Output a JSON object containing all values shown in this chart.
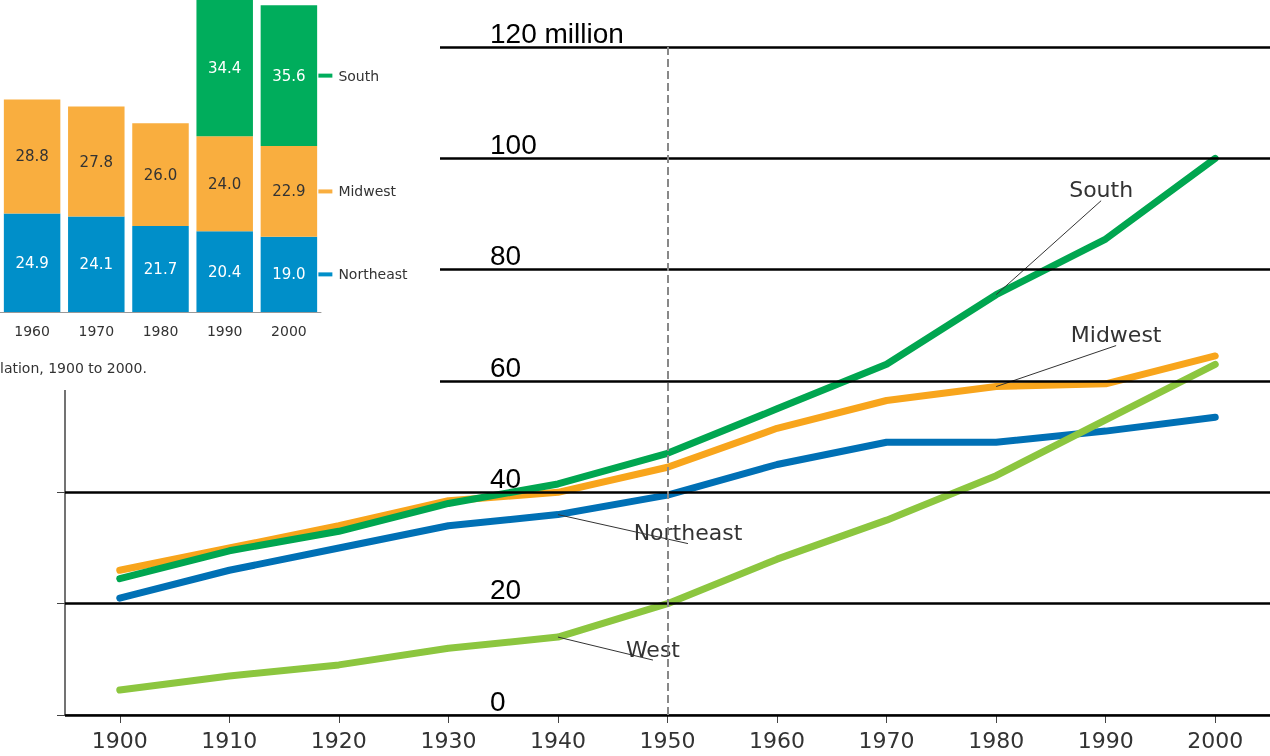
{
  "chart_data": [
    {
      "type": "bar",
      "stacked": true,
      "legend": "right",
      "categories": [
        "1960",
        "1970",
        "1980",
        "1990",
        "2000"
      ],
      "series": [
        {
          "name": "Northeast",
          "color": "#008fc9",
          "values": [
            24.9,
            24.1,
            21.7,
            20.4,
            19.0
          ],
          "value_labels": [
            "24.9",
            "24.1",
            "21.7",
            "20.4",
            "19.0"
          ]
        },
        {
          "name": "Midwest",
          "color": "#f9ae3f",
          "values": [
            28.8,
            27.8,
            26.0,
            24.0,
            22.9
          ],
          "value_labels": [
            "28.8",
            "27.8",
            "26.0",
            "24.0",
            "22.9"
          ]
        },
        {
          "name": "South",
          "color": "#00ad5c",
          "values": [
            null,
            null,
            null,
            34.4,
            35.6
          ],
          "value_labels": [
            null,
            null,
            null,
            "34.4",
            "35.6"
          ]
        }
      ],
      "annotations": [
        "lation, 1900 to 2000."
      ]
    },
    {
      "type": "line",
      "legend": false,
      "grid": "y",
      "marker": "none",
      "line_style": "solid",
      "x": [
        1900,
        1910,
        1920,
        1930,
        1940,
        1950,
        1960,
        1970,
        1980,
        1990,
        2000
      ],
      "xlim": [
        1895,
        2005
      ],
      "xticks": [
        1900,
        1910,
        1920,
        1930,
        1940,
        1950,
        1960,
        1970,
        1980,
        1990,
        2000
      ],
      "ylim": [
        0,
        120
      ],
      "yticks": [
        0,
        20,
        40,
        60,
        80,
        100,
        {
          "value": 120,
          "label": "120 million"
        }
      ],
      "series": [
        {
          "name": "Northeast",
          "color": "#0070b5",
          "values": [
            21,
            26,
            30,
            34,
            36,
            39.5,
            45,
            49,
            49,
            51,
            53.5
          ]
        },
        {
          "name": "Midwest",
          "color": "#f8a51c",
          "values": [
            26,
            30,
            34,
            38.5,
            40,
            44.5,
            51.5,
            56.5,
            59,
            59.5,
            64.5
          ]
        },
        {
          "name": "South",
          "color": "#00a650",
          "values": [
            24.5,
            29.5,
            33,
            38,
            41.5,
            47,
            55,
            63,
            75.5,
            85.5,
            100
          ]
        },
        {
          "name": "West",
          "color": "#8cc63f",
          "values": [
            4.5,
            7,
            9,
            12,
            14,
            20,
            28,
            35,
            43,
            53,
            63
          ]
        }
      ],
      "ref_lines": [
        {
          "axis": "x",
          "value": 1950,
          "color": "#888888",
          "line_style": "dashed"
        }
      ]
    }
  ]
}
